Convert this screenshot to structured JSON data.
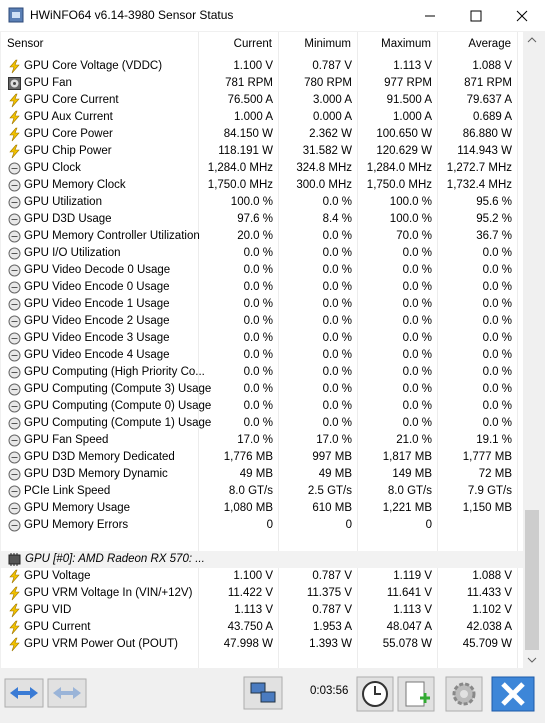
{
  "window": {
    "title": "HWiNFO64 v6.14-3980 Sensor Status"
  },
  "table": {
    "columns": [
      "Sensor",
      "Current",
      "Minimum",
      "Maximum",
      "Average"
    ],
    "sections": [
      {
        "rows": [
          [
            "GPU Core Voltage (VDDC)",
            "1.100 V",
            "0.787 V",
            "1.113 V",
            "1.088 V"
          ],
          [
            "GPU Fan",
            "781 RPM",
            "780 RPM",
            "977 RPM",
            "871 RPM"
          ],
          [
            "GPU Core Current",
            "76.500 A",
            "3.000 A",
            "91.500 A",
            "79.637 A"
          ],
          [
            "GPU Aux Current",
            "1.000 A",
            "0.000 A",
            "1.000 A",
            "0.689 A"
          ],
          [
            "GPU Core Power",
            "84.150 W",
            "2.362 W",
            "100.650 W",
            "86.880 W"
          ],
          [
            "GPU Chip Power",
            "118.191 W",
            "31.582 W",
            "120.629 W",
            "114.943 W"
          ],
          [
            "GPU Clock",
            "1,284.0 MHz",
            "324.8 MHz",
            "1,284.0 MHz",
            "1,272.7 MHz"
          ],
          [
            "GPU Memory Clock",
            "1,750.0 MHz",
            "300.0 MHz",
            "1,750.0 MHz",
            "1,732.4 MHz"
          ],
          [
            "GPU Utilization",
            "100.0 %",
            "0.0 %",
            "100.0 %",
            "95.6 %"
          ],
          [
            "GPU D3D Usage",
            "97.6 %",
            "8.4 %",
            "100.0 %",
            "95.2 %"
          ],
          [
            "GPU Memory Controller Utilization",
            "20.0 %",
            "0.0 %",
            "70.0 %",
            "36.7 %"
          ],
          [
            "GPU I/O Utilization",
            "0.0 %",
            "0.0 %",
            "0.0 %",
            "0.0 %"
          ],
          [
            "GPU Video Decode 0 Usage",
            "0.0 %",
            "0.0 %",
            "0.0 %",
            "0.0 %"
          ],
          [
            "GPU Video Encode 0 Usage",
            "0.0 %",
            "0.0 %",
            "0.0 %",
            "0.0 %"
          ],
          [
            "GPU Video Encode 1 Usage",
            "0.0 %",
            "0.0 %",
            "0.0 %",
            "0.0 %"
          ],
          [
            "GPU Video Encode 2 Usage",
            "0.0 %",
            "0.0 %",
            "0.0 %",
            "0.0 %"
          ],
          [
            "GPU Video Encode 3 Usage",
            "0.0 %",
            "0.0 %",
            "0.0 %",
            "0.0 %"
          ],
          [
            "GPU Video Encode 4 Usage",
            "0.0 %",
            "0.0 %",
            "0.0 %",
            "0.0 %"
          ],
          [
            "GPU Computing (High Priority Co...",
            "0.0 %",
            "0.0 %",
            "0.0 %",
            "0.0 %"
          ],
          [
            "GPU Computing (Compute 3) Usage",
            "0.0 %",
            "0.0 %",
            "0.0 %",
            "0.0 %"
          ],
          [
            "GPU Computing (Compute 0) Usage",
            "0.0 %",
            "0.0 %",
            "0.0 %",
            "0.0 %"
          ],
          [
            "GPU Computing (Compute 1) Usage",
            "0.0 %",
            "0.0 %",
            "0.0 %",
            "0.0 %"
          ],
          [
            "GPU Fan Speed",
            "17.0 %",
            "17.0 %",
            "21.0 %",
            "19.1 %"
          ],
          [
            "GPU D3D Memory Dedicated",
            "1,776 MB",
            "997 MB",
            "1,817 MB",
            "1,777 MB"
          ],
          [
            "GPU D3D Memory Dynamic",
            "49 MB",
            "49 MB",
            "149 MB",
            "72 MB"
          ],
          [
            "PCIe Link Speed",
            "8.0 GT/s",
            "2.5 GT/s",
            "8.0 GT/s",
            "7.9 GT/s"
          ],
          [
            "GPU Memory Usage",
            "1,080 MB",
            "610 MB",
            "1,221 MB",
            "1,150 MB"
          ],
          [
            "GPU Memory Errors",
            "0",
            "0",
            "0"
          ]
        ]
      },
      {
        "group": "GPU [#0]: AMD Radeon RX 570: ...",
        "rows": [
          [
            "GPU Voltage",
            "1.100 V",
            "0.787 V",
            "1.119 V",
            "1.088 V"
          ],
          [
            "GPU VRM Voltage In (VIN/+12V)",
            "11.422 V",
            "11.375 V",
            "11.641 V",
            "11.433 V"
          ],
          [
            "GPU VID",
            "1.113 V",
            "0.787 V",
            "1.113 V",
            "1.102 V"
          ],
          [
            "GPU Current",
            "43.750 A",
            "1.953 A",
            "48.047 A",
            "42.038 A"
          ],
          [
            "GPU VRM Power Out (POUT)",
            "47.998 W",
            "1.393 W",
            "55.078 W",
            "45.709 W"
          ]
        ]
      }
    ]
  },
  "footer": {
    "timer": "0:03:56"
  }
}
